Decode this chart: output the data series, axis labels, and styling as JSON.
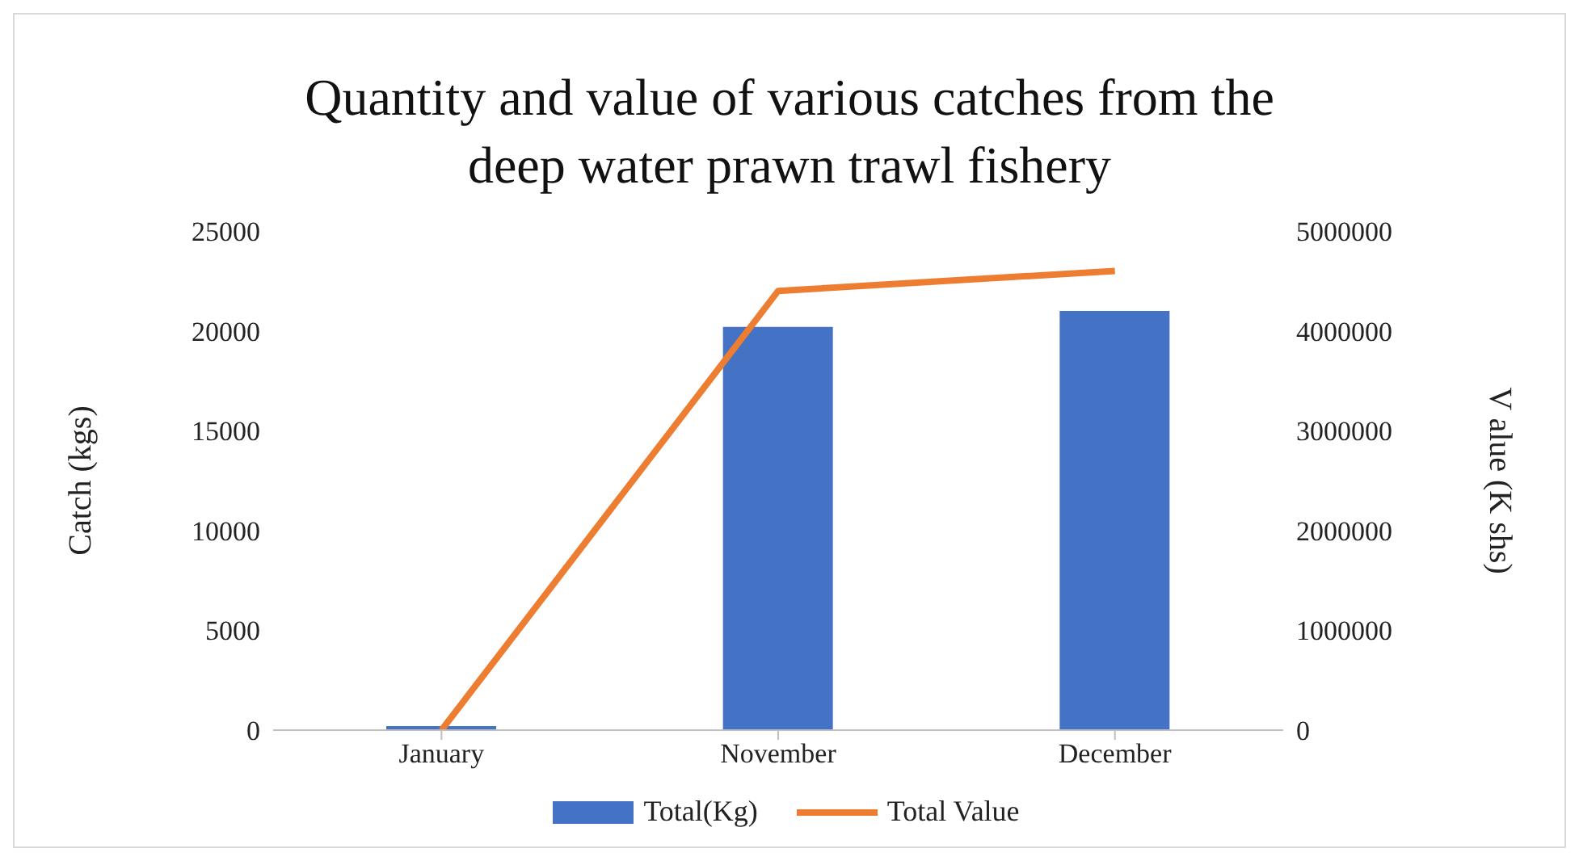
{
  "chart_data": {
    "type": "bar",
    "title": "Quantity and value of various catches from the deep water prawn trawl fishery",
    "ylabel": "Catch (kgs)",
    "y2label": "V alue (K shs)",
    "categories": [
      "January",
      "November",
      "December"
    ],
    "series": [
      {
        "name": "Total(Kg)",
        "color": "#4472c4",
        "values": [
          200,
          20200,
          21000
        ]
      },
      {
        "name": "Total Value",
        "type": "line",
        "axis": "y2",
        "color": "#ed7d31",
        "values": [
          0,
          4400000,
          4600000
        ]
      }
    ],
    "ylim": [
      0,
      25000
    ],
    "yticks": [
      0,
      5000,
      10000,
      15000,
      20000,
      25000
    ],
    "y2lim": [
      0,
      5000000
    ],
    "y2ticks": [
      0,
      1000000,
      2000000,
      3000000,
      4000000,
      5000000
    ],
    "legend": "bottom",
    "marker": "none"
  }
}
